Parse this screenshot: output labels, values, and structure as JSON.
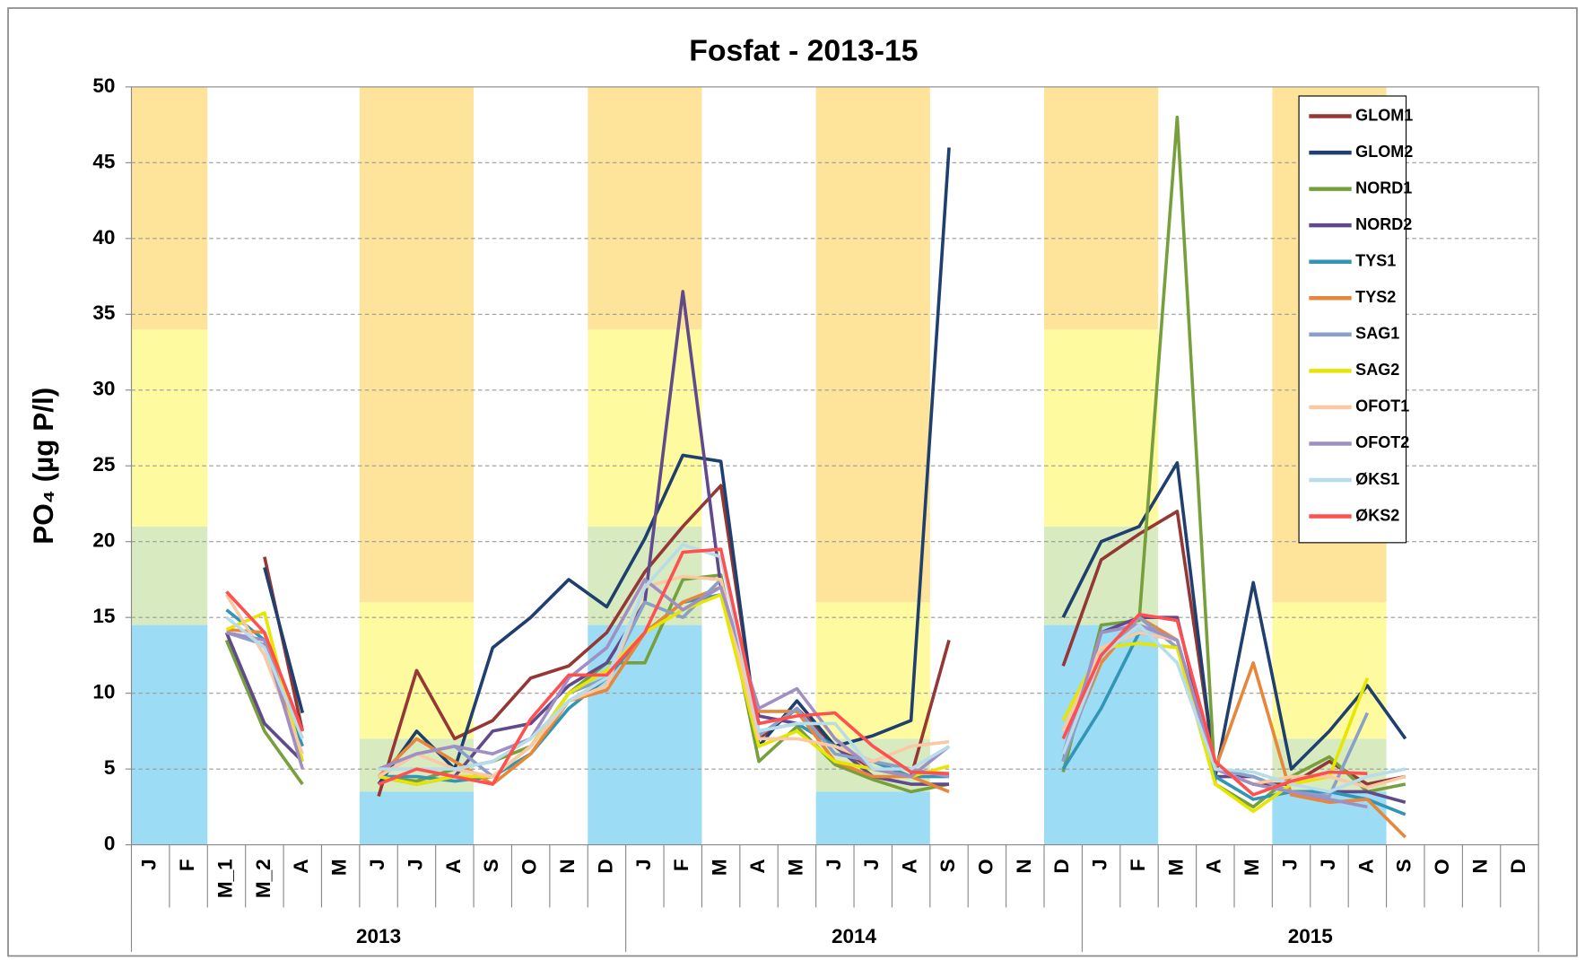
{
  "chart_data": {
    "type": "line",
    "title": "Fosfat - 2013-15",
    "y_label": "PO₄ (µg P/l)",
    "categories": [
      "J",
      "F",
      "M_1",
      "M_2",
      "A",
      "M",
      "J",
      "J",
      "A",
      "S",
      "O",
      "N",
      "D",
      "J",
      "F",
      "M",
      "A",
      "M",
      "J",
      "J",
      "A",
      "S",
      "O",
      "N",
      "D",
      "J",
      "F",
      "M",
      "A",
      "M",
      "J",
      "J",
      "A",
      "S",
      "O",
      "N",
      "D"
    ],
    "years": [
      {
        "label": "2013",
        "count": 13
      },
      {
        "label": "2014",
        "count": 12
      },
      {
        "label": "2015",
        "count": 12
      }
    ],
    "ylim": [
      0,
      50
    ],
    "yticks": [
      0,
      5,
      10,
      15,
      20,
      25,
      30,
      35,
      40,
      45,
      50
    ],
    "grid": true,
    "legend": "upper right",
    "band_colors": [
      "#9cdcf5",
      "#d7eac0",
      "#fdfaa0",
      "#fde49a"
    ],
    "bands": [
      {
        "start": 0,
        "end": 1,
        "limits": [
          14.5,
          21,
          34,
          50
        ]
      },
      {
        "start": 6,
        "end": 8,
        "limits": [
          3.5,
          7,
          16,
          50
        ]
      },
      {
        "start": 12,
        "end": 14,
        "limits": [
          14.5,
          21,
          34,
          50
        ]
      },
      {
        "start": 18,
        "end": 20,
        "limits": [
          3.5,
          7,
          16,
          50
        ]
      },
      {
        "start": 24,
        "end": 26,
        "limits": [
          14.5,
          21,
          34,
          50
        ]
      },
      {
        "start": 30,
        "end": 32,
        "limits": [
          3.5,
          7,
          16,
          50
        ]
      }
    ],
    "series": [
      {
        "name": "GLOM1",
        "color": "#953735",
        "values": [
          null,
          null,
          null,
          19,
          7.5,
          null,
          3.2,
          11.5,
          7,
          8.2,
          11,
          11.8,
          14,
          18,
          21,
          23.7,
          7,
          9,
          6.5,
          5,
          4.5,
          13.5,
          null,
          null,
          11.8,
          18.8,
          20.5,
          22,
          5,
          4,
          4,
          5.5,
          4,
          4.5,
          null,
          null,
          null
        ]
      },
      {
        "name": "GLOM2",
        "color": "#1f3f6e",
        "values": [
          null,
          null,
          null,
          18.3,
          8.7,
          null,
          4,
          7.5,
          5,
          13,
          15,
          17.5,
          15.7,
          20.2,
          25.7,
          25.3,
          6.5,
          9.5,
          6.5,
          7.2,
          8.2,
          46,
          null,
          null,
          15,
          20,
          21,
          25.2,
          4.5,
          17.3,
          5,
          7.5,
          10.5,
          7,
          null,
          null,
          null
        ]
      },
      {
        "name": "NORD1",
        "color": "#77a03c",
        "values": [
          null,
          null,
          13.5,
          7.5,
          4,
          null,
          4.5,
          4.2,
          5,
          5.5,
          6.5,
          10,
          12,
          12,
          17.5,
          17.8,
          5.5,
          7.8,
          5.3,
          4.3,
          3.5,
          4,
          null,
          null,
          4.8,
          14.5,
          14.8,
          48,
          4,
          2.5,
          4.5,
          5.8,
          3.5,
          4,
          null,
          null,
          null
        ]
      },
      {
        "name": "NORD2",
        "color": "#604a8b",
        "values": [
          null,
          null,
          14,
          8,
          5.5,
          null,
          4.5,
          4,
          4.5,
          7.5,
          8,
          10.5,
          12,
          16,
          36.5,
          17,
          8.5,
          8,
          6.5,
          4.5,
          4,
          4,
          null,
          null,
          5.5,
          14,
          15,
          15,
          4.5,
          4.5,
          3.5,
          3.5,
          3.5,
          2.8,
          null,
          null,
          null
        ]
      },
      {
        "name": "TYS1",
        "color": "#3395b5",
        "values": [
          null,
          null,
          15.5,
          13.5,
          6.5,
          null,
          4.5,
          4.5,
          4.2,
          4.5,
          6,
          9,
          11,
          14,
          16,
          16.5,
          7.5,
          8,
          6.5,
          5.5,
          4.5,
          4.5,
          null,
          null,
          5,
          9,
          14,
          13.5,
          4.5,
          3,
          3.5,
          3.5,
          3,
          2,
          null,
          null,
          null
        ]
      },
      {
        "name": "TYS2",
        "color": "#e6873a",
        "values": [
          null,
          null,
          14.2,
          14,
          5.5,
          null,
          4.5,
          7,
          5.5,
          4,
          6,
          9.5,
          10.2,
          14,
          16,
          17,
          8.8,
          8.8,
          5.5,
          4.5,
          4.5,
          3.5,
          null,
          null,
          6,
          12,
          15,
          13.5,
          5,
          12,
          3.3,
          2.8,
          3,
          0.5,
          null,
          null,
          null
        ]
      },
      {
        "name": "SAG1",
        "color": "#8aa0c8",
        "values": [
          null,
          null,
          14,
          13.2,
          7,
          null,
          4.5,
          6,
          6.5,
          4.5,
          6.5,
          10,
          11,
          16,
          15,
          17.5,
          7.2,
          9,
          6,
          5.5,
          5,
          4.5,
          null,
          null,
          5.5,
          12.5,
          15,
          13,
          5,
          4.5,
          3.5,
          3.2,
          8.7,
          null,
          null,
          null,
          null
        ]
      },
      {
        "name": "SAG2",
        "color": "#e6e600",
        "values": [
          null,
          null,
          14.2,
          15.3,
          5.5,
          null,
          4.5,
          4,
          4.5,
          4.5,
          6.5,
          10,
          11.5,
          14,
          15.5,
          16.5,
          6.5,
          7.5,
          5.5,
          5,
          4.5,
          5.2,
          null,
          null,
          8.2,
          13,
          13.3,
          13,
          4,
          2.2,
          4,
          4.5,
          11,
          null,
          null,
          null,
          null
        ]
      },
      {
        "name": "OFOT1",
        "color": "#fbc8a4",
        "values": [
          null,
          null,
          16.5,
          12.5,
          6,
          null,
          4.5,
          6,
          5,
          4.5,
          6.5,
          9.5,
          10.5,
          17,
          17.7,
          17.5,
          7,
          7,
          6.5,
          5.5,
          6.5,
          6.8,
          null,
          null,
          7.5,
          13,
          14,
          13.5,
          5,
          4,
          4.5,
          4.5,
          3.8,
          4.5,
          null,
          null,
          null
        ]
      },
      {
        "name": "OFOT2",
        "color": "#9f8fc4",
        "values": [
          null,
          null,
          14,
          13.5,
          5,
          null,
          5,
          6,
          6.5,
          6,
          7,
          11,
          13,
          17.5,
          15.5,
          17,
          9,
          10.3,
          7,
          5,
          4.5,
          6.5,
          null,
          null,
          6,
          14,
          14.5,
          13.5,
          5,
          4,
          3.5,
          3,
          2.5,
          null,
          null,
          null,
          null
        ]
      },
      {
        "name": "ØKS1",
        "color": "#b7dcea",
        "values": [
          null,
          null,
          15,
          13,
          7,
          null,
          5,
          5,
          5,
          5.5,
          7,
          9.5,
          11,
          17,
          19.8,
          19,
          7.5,
          8,
          8,
          5,
          5,
          6.5,
          null,
          null,
          6,
          12.5,
          14.5,
          12,
          5,
          4.8,
          4,
          3.5,
          4.5,
          5,
          null,
          null,
          null
        ]
      },
      {
        "name": "ØKS2",
        "color": "#ff4f4f",
        "values": [
          null,
          null,
          16.7,
          14,
          7.5,
          null,
          4,
          5,
          4.5,
          4,
          8.3,
          11.2,
          11.2,
          14,
          19.3,
          19.5,
          8,
          8.5,
          8.7,
          6.5,
          4.8,
          4.7,
          null,
          null,
          7,
          12.5,
          15.2,
          14.8,
          5.5,
          3.3,
          4.2,
          4.8,
          4.7,
          null,
          null,
          null,
          null
        ]
      }
    ]
  }
}
